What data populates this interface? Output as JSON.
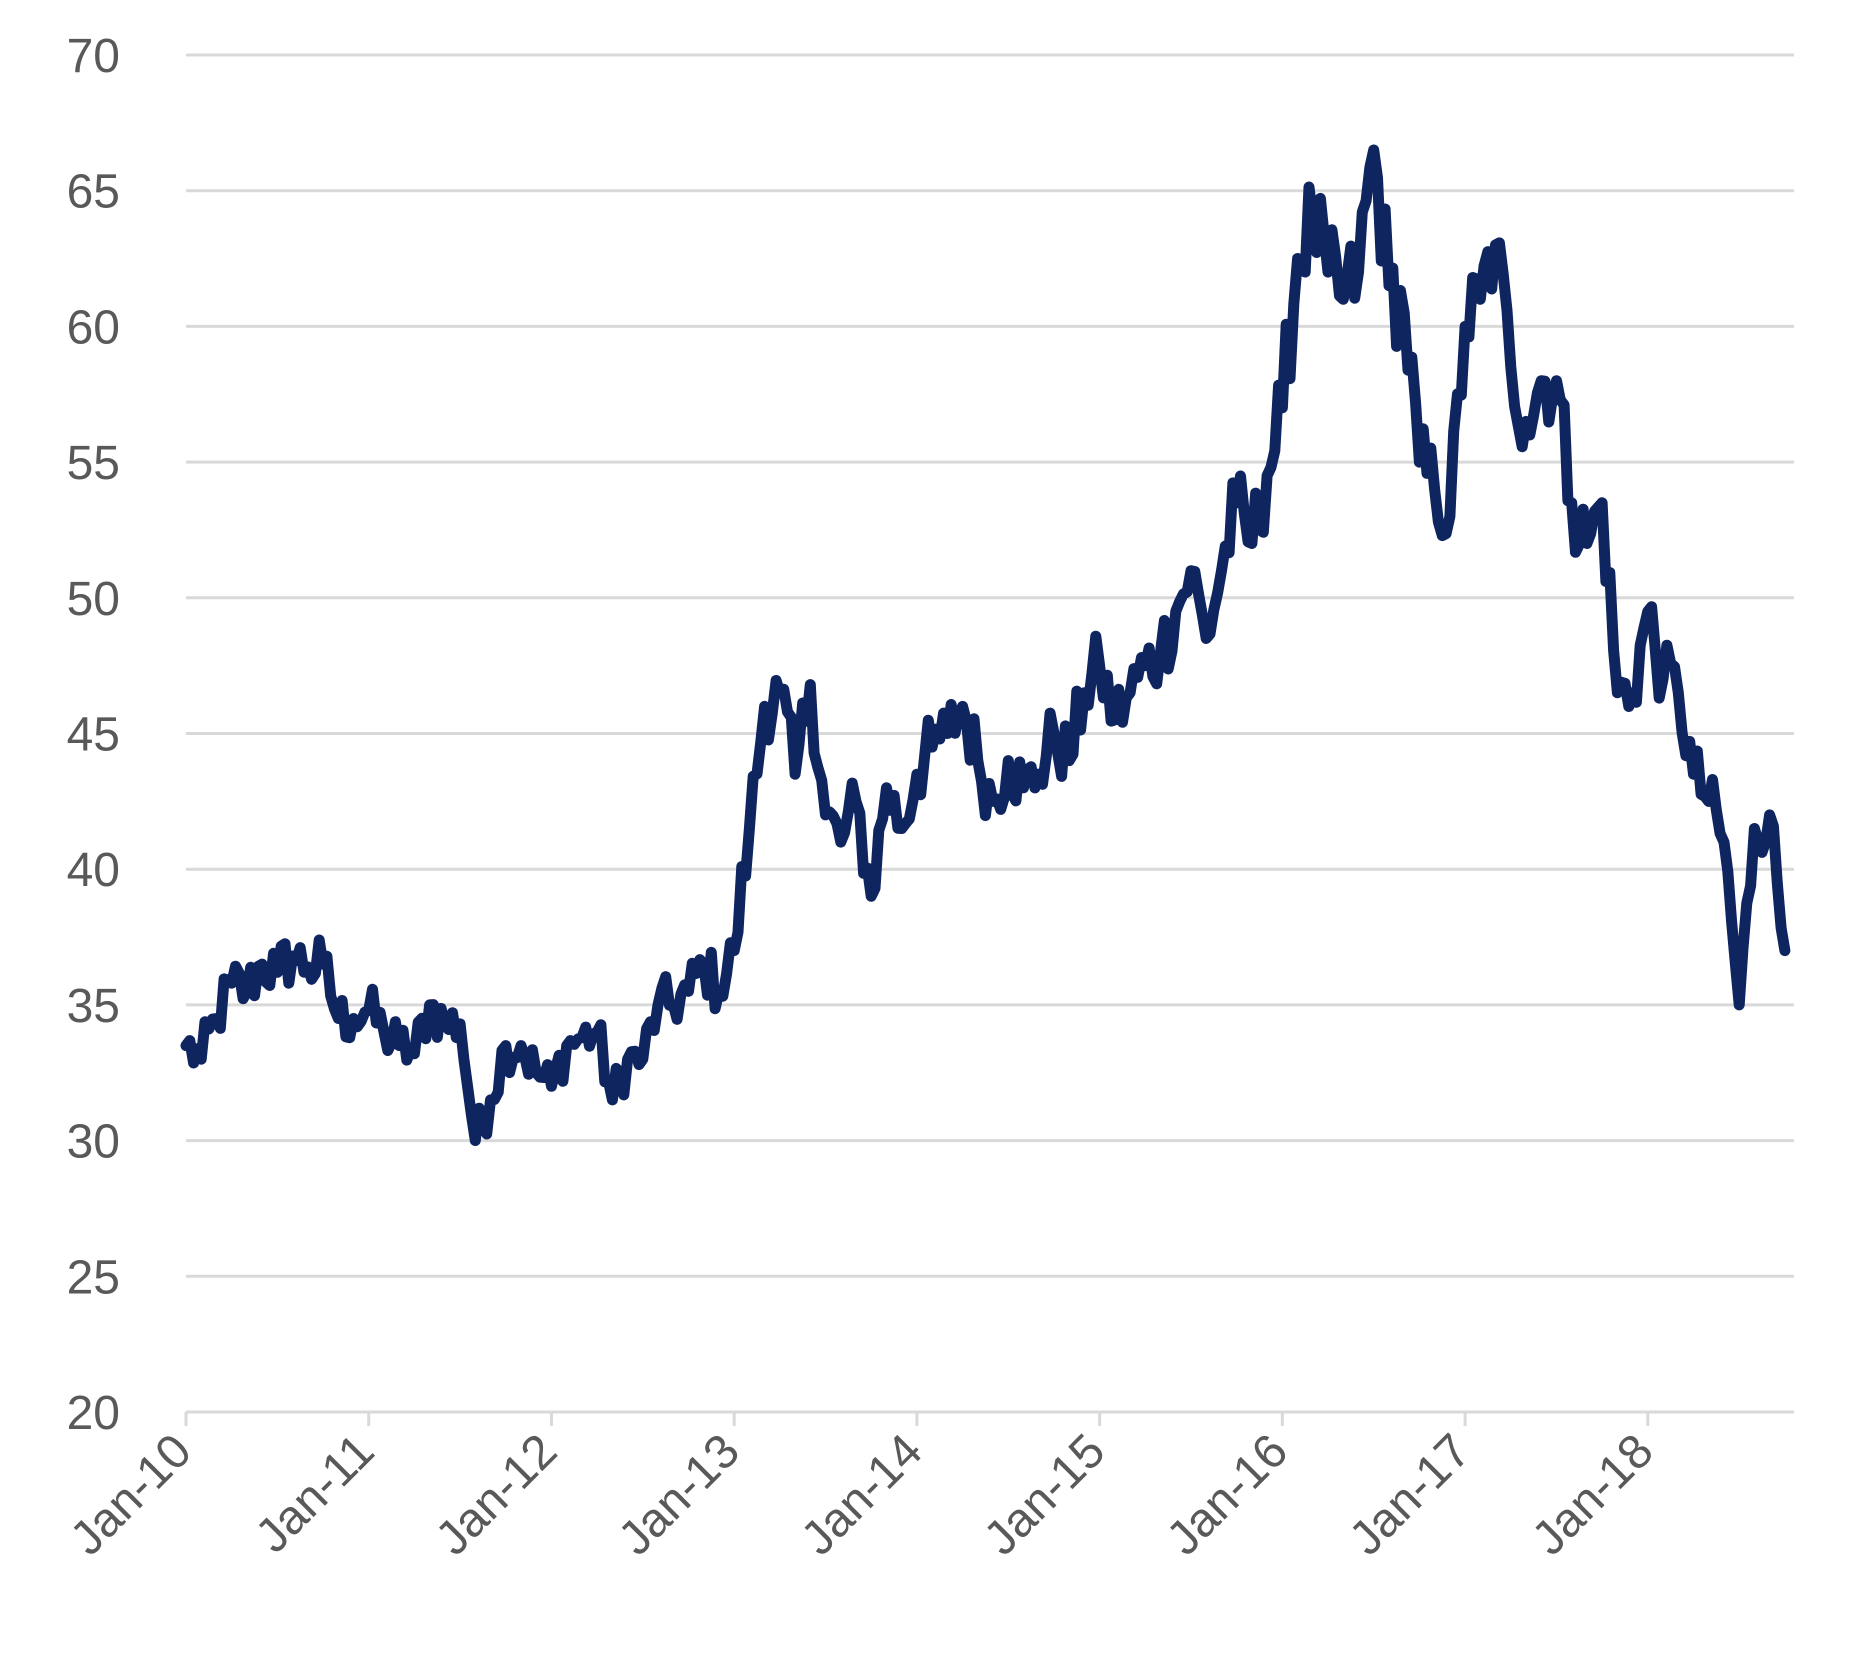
{
  "chart_data": {
    "type": "line",
    "title": "",
    "xlabel": "",
    "ylabel": "",
    "ylim": [
      20,
      70
    ],
    "yticks": [
      20,
      25,
      30,
      35,
      40,
      45,
      50,
      55,
      60,
      65,
      70
    ],
    "xlim": [
      "2010-01",
      "2018-10"
    ],
    "xticks": [
      "Jan-10",
      "Jan-11",
      "Jan-12",
      "Jan-13",
      "Jan-14",
      "Jan-15",
      "Jan-16",
      "Jan-17",
      "Jan-18"
    ],
    "grid": true,
    "legend": "none",
    "color": "#0f2560",
    "series": [
      {
        "x": [
          "2010-01",
          "2010-02",
          "2010-03",
          "2010-04",
          "2010-05",
          "2010-06",
          "2010-07",
          "2010-08",
          "2010-09",
          "2010-10",
          "2010-11",
          "2010-12",
          "2011-01",
          "2011-02",
          "2011-03",
          "2011-04",
          "2011-05",
          "2011-06",
          "2011-07",
          "2011-08",
          "2011-09",
          "2011-10",
          "2011-11",
          "2011-12",
          "2012-01",
          "2012-02",
          "2012-03",
          "2012-04",
          "2012-05",
          "2012-06",
          "2012-07",
          "2012-08",
          "2012-09",
          "2012-10",
          "2012-11",
          "2012-12",
          "2013-01",
          "2013-02",
          "2013-03",
          "2013-04",
          "2013-05",
          "2013-06",
          "2013-07",
          "2013-08",
          "2013-09",
          "2013-10",
          "2013-11",
          "2013-12",
          "2014-01",
          "2014-02",
          "2014-03",
          "2014-04",
          "2014-05",
          "2014-06",
          "2014-07",
          "2014-08",
          "2014-09",
          "2014-10",
          "2014-11",
          "2014-12",
          "2015-01",
          "2015-02",
          "2015-03",
          "2015-04",
          "2015-05",
          "2015-06",
          "2015-07",
          "2015-08",
          "2015-09",
          "2015-10",
          "2015-11",
          "2015-12",
          "2016-01",
          "2016-02",
          "2016-03",
          "2016-04",
          "2016-05",
          "2016-06",
          "2016-07",
          "2016-08",
          "2016-09",
          "2016-10",
          "2016-11",
          "2016-12",
          "2017-01",
          "2017-02",
          "2017-03",
          "2017-04",
          "2017-05",
          "2017-06",
          "2017-07",
          "2017-08",
          "2017-09",
          "2017-10",
          "2017-11",
          "2017-12",
          "2018-01",
          "2018-02",
          "2018-03",
          "2018-04",
          "2018-05",
          "2018-06",
          "2018-07",
          "2018-08",
          "2018-09",
          "2018-10"
        ],
        "values": [
          33.5,
          33.0,
          34.5,
          35.8,
          35.5,
          36.5,
          36.2,
          36.8,
          36.4,
          36.5,
          34.5,
          34.5,
          34.8,
          34.0,
          33.5,
          33.2,
          35.0,
          34.3,
          34.3,
          30.0,
          31.5,
          33.5,
          33.5,
          32.5,
          32.0,
          33.5,
          33.8,
          34.0,
          31.5,
          33.0,
          33.0,
          35.0,
          35.0,
          35.5,
          36.5,
          35.5,
          37.0,
          41.5,
          46.0,
          46.5,
          43.5,
          46.8,
          42.0,
          41.0,
          42.5,
          39.0,
          43.0,
          41.5,
          43.5,
          44.5,
          45.0,
          46.0,
          44.0,
          42.5,
          44.0,
          43.0,
          43.5,
          45.0,
          44.0,
          46.5,
          47.5,
          45.5,
          46.5,
          47.5,
          48.0,
          49.5,
          51.0,
          48.5,
          51.0,
          53.5,
          52.0,
          54.5,
          57.0,
          62.5,
          64.0,
          62.0,
          61.0,
          62.0,
          66.5,
          61.5,
          60.5,
          55.0,
          54.0,
          53.0,
          60.0,
          61.0,
          63.0,
          58.5,
          56.5,
          58.0,
          58.0,
          53.5,
          52.0,
          53.5,
          46.5,
          46.5,
          49.5,
          47.0,
          46.5,
          43.5,
          42.5,
          41.0,
          35.0,
          41.5,
          42.0,
          37.0
        ]
      }
    ]
  }
}
